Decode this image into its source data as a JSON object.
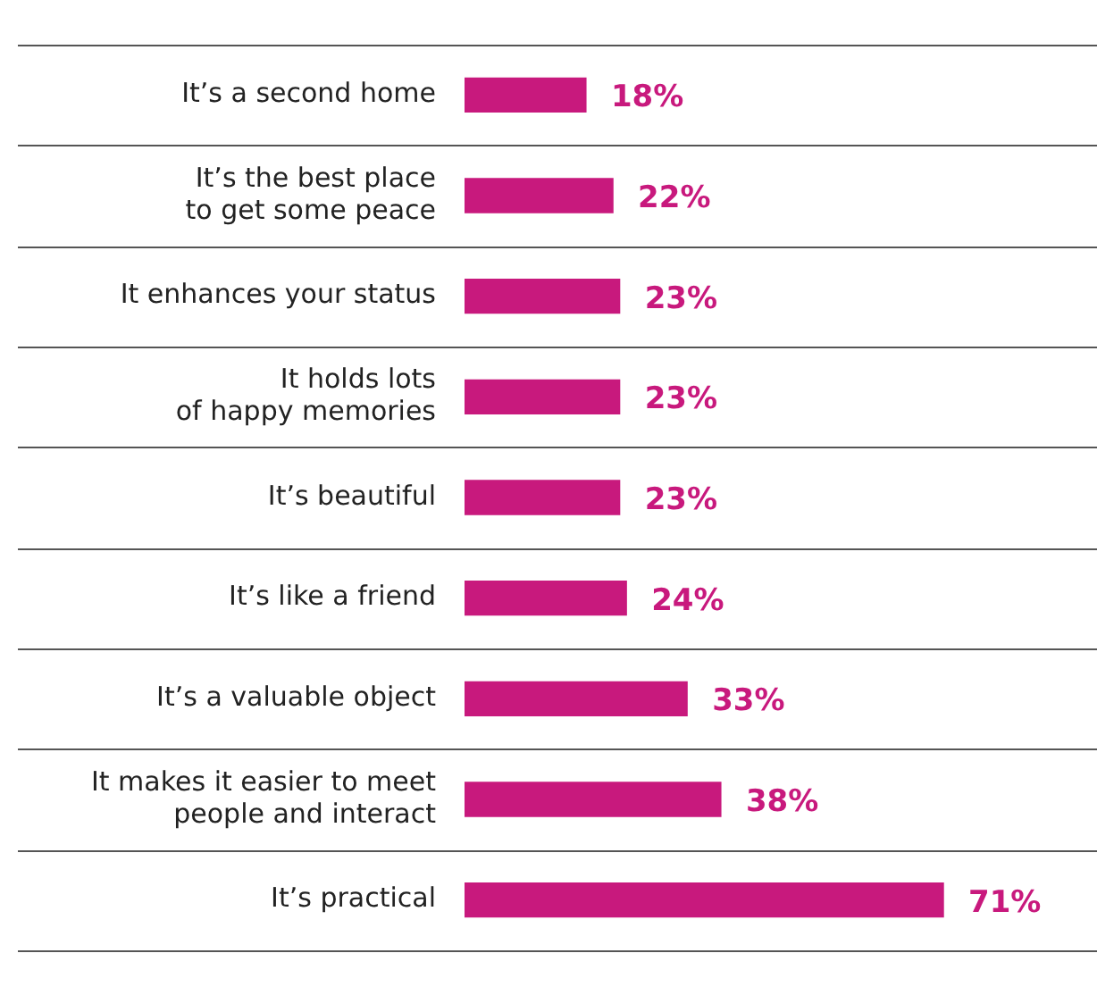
{
  "chart_data": {
    "type": "bar",
    "orientation": "horizontal",
    "categories": [
      "It’s a second home",
      "It’s the best place\nto get some peace",
      "It enhances your status",
      "It holds lots\nof happy memories",
      "It’s beautiful",
      "It’s like a friend",
      "It’s a valuable object",
      "It makes it easier to meet\npeople and interact",
      "It’s practical"
    ],
    "values": [
      18,
      22,
      23,
      23,
      23,
      24,
      33,
      38,
      71
    ],
    "value_labels": [
      "18%",
      "22%",
      "23%",
      "23%",
      "23%",
      "24%",
      "33%",
      "38%",
      "71%"
    ],
    "color": "#c8197d",
    "grid": "y",
    "legend": false
  }
}
